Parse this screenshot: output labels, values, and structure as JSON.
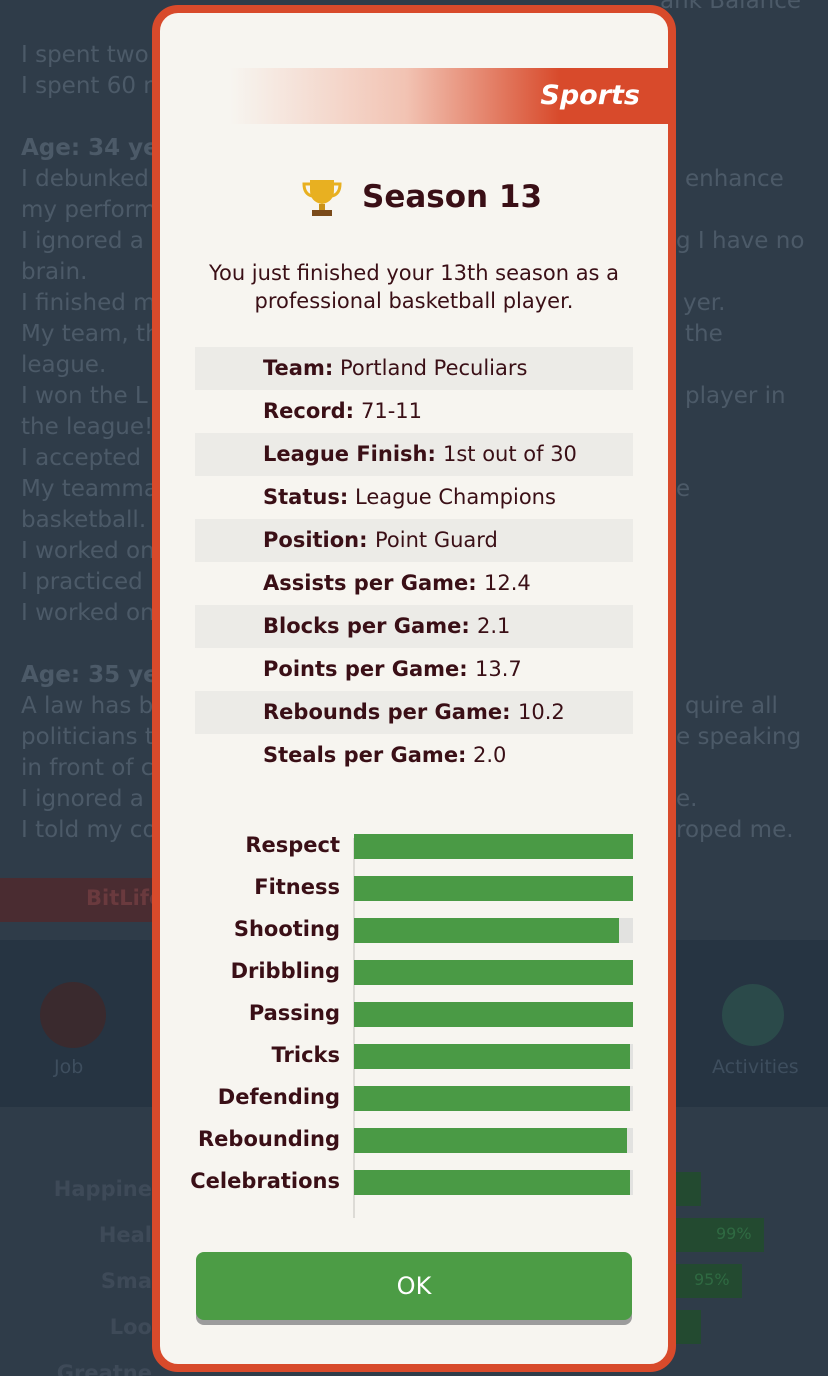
{
  "background": {
    "top_right": "ank Balance",
    "log_left": [
      "I spent two",
      "I spent 60 n",
      "Age: 34 ye",
      "I debunked",
      "my perform",
      "I ignored a",
      "brain.",
      "I finished m",
      "My team, th",
      "league.",
      "I won the L",
      "the league!",
      "I accepted",
      "My teamma",
      "basketball.",
      "I worked on",
      "I practiced",
      "I worked on",
      "Age: 35 ye",
      "A law has b",
      "politicians t",
      "in front of c",
      "I ignored a",
      "I told my co"
    ],
    "log_right": [
      "enhance",
      "g I have no",
      "yer.",
      "the",
      "player in",
      "e",
      "quire all",
      "e speaking",
      "e.",
      "roped me."
    ],
    "banner": "BitLife",
    "nav": [
      "Job",
      "Activities"
    ],
    "stats": [
      "Happine",
      "Heal",
      "Sma",
      "Loo",
      "Greatne"
    ],
    "stat_values": [
      "99%",
      "95%"
    ]
  },
  "modal": {
    "header": "Sports",
    "title": "Season 13",
    "description": "You just finished your 13th season as a professional basketball player.",
    "details": [
      {
        "label": "Team:",
        "value": "Portland Peculiars"
      },
      {
        "label": "Record:",
        "value": "71-11"
      },
      {
        "label": "League Finish:",
        "value": "1st out of 30"
      },
      {
        "label": "Status:",
        "value": "League Champions"
      },
      {
        "label": "Position:",
        "value": "Point Guard"
      },
      {
        "label": "Assists per Game:",
        "value": "12.4"
      },
      {
        "label": "Blocks per Game:",
        "value": "2.1"
      },
      {
        "label": "Points per Game:",
        "value": "13.7"
      },
      {
        "label": "Rebounds per Game:",
        "value": "10.2"
      },
      {
        "label": "Steals per Game:",
        "value": "2.0"
      }
    ],
    "skills": {
      "categories": [
        "Respect",
        "Fitness",
        "Shooting",
        "Dribbling",
        "Passing",
        "Tricks",
        "Defending",
        "Rebounding",
        "Celebrations"
      ],
      "values": [
        100,
        100,
        95,
        100,
        100,
        99,
        99,
        98,
        99
      ],
      "xlim": [
        0,
        100
      ],
      "color": "#4a9a45"
    },
    "button": "OK"
  }
}
